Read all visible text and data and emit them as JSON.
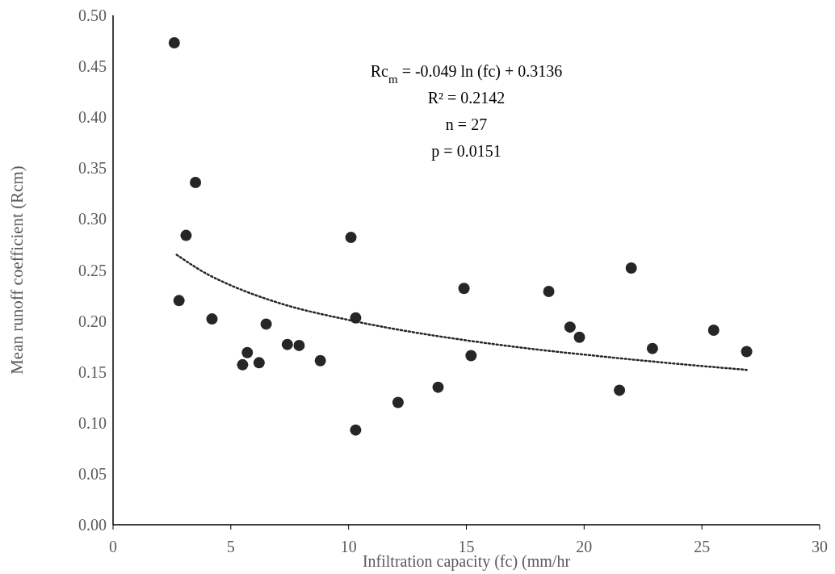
{
  "chart_data": {
    "type": "scatter",
    "xlabel": "Infiltration capacity  (fc) (mm/hr",
    "ylabel": "Mean runoff coefficient (Rcm)",
    "xlim": [
      0,
      30
    ],
    "xticks": [
      0,
      5,
      10,
      15,
      20,
      25,
      30
    ],
    "ylim": [
      0,
      0.5
    ],
    "yticks": [
      {
        "value": 0,
        "label": "0.00"
      },
      {
        "value": 0.05,
        "label": "0.05"
      },
      {
        "value": 0.1,
        "label": "0.10"
      },
      {
        "value": 0.15,
        "label": "0.15"
      },
      {
        "value": 0.2,
        "label": "0.20"
      },
      {
        "value": 0.25,
        "label": "0.25"
      },
      {
        "value": 0.3,
        "label": "0.30"
      },
      {
        "value": 0.35,
        "label": "0.35"
      },
      {
        "value": 0.4,
        "label": "0.40"
      },
      {
        "value": 0.45,
        "label": "0.45"
      },
      {
        "value": 0.5,
        "label": "0.50"
      }
    ],
    "grid": false,
    "marker": "circle",
    "series": [
      {
        "color": "#262626",
        "x": [
          2.6,
          3.5,
          3.1,
          2.8,
          4.2,
          5.5,
          5.7,
          6.2,
          6.5,
          7.4,
          7.9,
          8.8,
          10.1,
          10.3,
          10.3,
          12.1,
          13.8,
          14.9,
          15.2,
          18.5,
          19.4,
          19.8,
          21.5,
          22.0,
          22.9,
          25.5,
          26.9
        ],
        "values": [
          0.473,
          0.336,
          0.284,
          0.22,
          0.202,
          0.157,
          0.169,
          0.159,
          0.197,
          0.177,
          0.176,
          0.161,
          0.282,
          0.203,
          0.093,
          0.12,
          0.135,
          0.232,
          0.166,
          0.229,
          0.194,
          0.184,
          0.132,
          0.252,
          0.173,
          0.191,
          0.17
        ]
      },
      {
        "type": "line",
        "color": "#262626",
        "line_style": "dotted",
        "marker": "none",
        "x": [
          2.7,
          4,
          5,
          7,
          10,
          13,
          15,
          18,
          20,
          23,
          26.9
        ],
        "values": [
          0.265,
          0.246,
          0.235,
          0.218,
          0.201,
          0.188,
          0.181,
          0.172,
          0.167,
          0.16,
          0.152
        ]
      }
    ],
    "annotations": [
      "Rc$_{m}$ = -0.049 ln (fc) + 0.3136",
      "R² = 0.2142",
      "n = 27",
      "p = 0.0151"
    ]
  }
}
